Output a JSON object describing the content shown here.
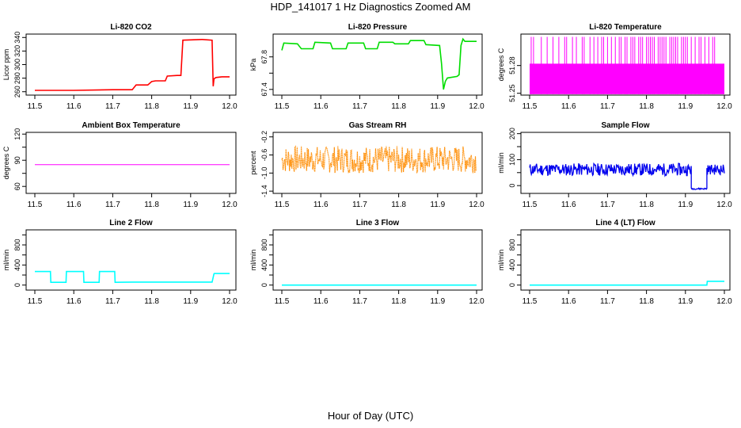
{
  "title": "HDP_141017  1 Hz Diagnostics Zoomed AM",
  "x_axis_label": "Hour of Day (UTC)",
  "chart_data": [
    {
      "type": "line",
      "title": "Li-820 CO2",
      "ylabel": "Licor ppm",
      "color": "#ff0000",
      "xlim": [
        11.5,
        12.0
      ],
      "ylim": [
        255,
        345
      ],
      "yticks": [
        260,
        280,
        300,
        320,
        340
      ],
      "xticks": [
        11.5,
        11.6,
        11.7,
        11.8,
        11.9,
        12.0
      ],
      "x": [
        11.5,
        11.6,
        11.7,
        11.75,
        11.76,
        11.79,
        11.8,
        11.81,
        11.835,
        11.84,
        11.865,
        11.875,
        11.88,
        11.93,
        11.955,
        11.958,
        11.96,
        11.965,
        11.98,
        12.0
      ],
      "y": [
        262,
        262,
        263,
        263,
        270,
        270,
        275,
        276,
        276,
        283,
        284,
        284,
        336,
        337,
        336,
        268,
        279,
        281,
        282,
        282
      ]
    },
    {
      "type": "line",
      "title": "Li-820 Pressure",
      "ylabel": "kPa",
      "color": "#00dd00",
      "xlim": [
        11.5,
        12.0
      ],
      "ylim": [
        67.33,
        68.08
      ],
      "yticks": [
        67.4,
        67.6,
        67.8
      ],
      "ytick_labels": [
        "67.4",
        "",
        "67.8"
      ],
      "xticks": [
        11.5,
        11.6,
        11.7,
        11.8,
        11.9,
        12.0
      ],
      "x": [
        11.5,
        11.505,
        11.54,
        11.55,
        11.58,
        11.585,
        11.625,
        11.63,
        11.665,
        11.67,
        11.71,
        11.715,
        11.745,
        11.75,
        11.785,
        11.79,
        11.825,
        11.83,
        11.865,
        11.87,
        11.905,
        11.91,
        11.915,
        11.92,
        11.925,
        11.95,
        11.955,
        11.96,
        11.965,
        11.97,
        12.0
      ],
      "y": [
        67.88,
        67.97,
        67.96,
        67.9,
        67.9,
        67.98,
        67.97,
        67.9,
        67.9,
        67.97,
        67.97,
        67.9,
        67.9,
        67.98,
        67.98,
        67.96,
        67.96,
        68.0,
        68.0,
        67.95,
        67.94,
        67.72,
        67.4,
        67.5,
        67.54,
        67.56,
        67.58,
        67.94,
        68.02,
        67.99,
        67.99
      ]
    },
    {
      "type": "line",
      "title": "Li-820 Temperature",
      "ylabel": "degrees C",
      "color": "#ff00ff",
      "xlim": [
        11.5,
        12.0
      ],
      "ylim": [
        51.248,
        51.314
      ],
      "yticks": [
        51.25,
        51.28
      ],
      "ytick_labels": [
        "51.25",
        "51.28"
      ],
      "top_value": 51.311,
      "low_value": 51.249,
      "high_value": 51.282,
      "xticks": [
        11.5,
        11.6,
        11.7,
        11.8,
        11.9,
        12.0
      ],
      "spikes": [
        11.504,
        11.51,
        11.53,
        11.545,
        11.56,
        11.575,
        11.59,
        11.595,
        11.61,
        11.62,
        11.635,
        11.64,
        11.655,
        11.665,
        11.675,
        11.685,
        11.69,
        11.7,
        11.71,
        11.72,
        11.73,
        11.735,
        11.745,
        11.75,
        11.76,
        11.765,
        11.77,
        11.78,
        11.785,
        11.79,
        11.8,
        11.805,
        11.81,
        11.815,
        11.82,
        11.83,
        11.835,
        11.84,
        11.845,
        11.85,
        11.86,
        11.865,
        11.87,
        11.875,
        11.88,
        11.89,
        11.895,
        11.9,
        11.905,
        11.915,
        11.925,
        11.935,
        11.94,
        11.95,
        11.96,
        11.97,
        11.975
      ]
    },
    {
      "type": "line",
      "title": "Ambient Box Temperature",
      "ylabel": "degrees C",
      "color": "#ff00ff",
      "xlim": [
        11.5,
        12.0
      ],
      "ylim": [
        52,
        122
      ],
      "yticks": [
        60,
        75,
        90,
        105,
        120
      ],
      "ytick_labels": [
        "60",
        "",
        "90",
        "",
        "120"
      ],
      "xticks": [
        11.5,
        11.6,
        11.7,
        11.8,
        11.9,
        12.0
      ],
      "x": [
        11.5,
        12.0
      ],
      "y": [
        85,
        85
      ]
    },
    {
      "type": "line",
      "title": "Gas Stream RH",
      "ylabel": "percent",
      "color": "#ff8c00",
      "xlim": [
        11.5,
        12.0
      ],
      "ylim": [
        -1.45,
        -0.1
      ],
      "yticks": [
        -1.4,
        -1.0,
        -0.6,
        -0.2
      ],
      "ytick_labels": [
        "-1.4",
        "-1.0",
        "-0.6",
        "-0.2"
      ],
      "xticks": [
        11.5,
        11.6,
        11.7,
        11.8,
        11.9,
        12.0
      ],
      "mean": -0.7,
      "noise_amplitude": 0.3,
      "spread_limits": [
        -1.36,
        -0.14
      ],
      "seed": 7
    },
    {
      "type": "line",
      "title": "Sample Flow",
      "ylabel": "ml/min",
      "color": "#0000ee",
      "xlim": [
        11.5,
        12.0
      ],
      "ylim": [
        -30,
        205
      ],
      "yticks": [
        0,
        50,
        100,
        150,
        200
      ],
      "ytick_labels": [
        "0",
        "",
        "100",
        "",
        "200"
      ],
      "xticks": [
        11.5,
        11.6,
        11.7,
        11.8,
        11.9,
        12.0
      ],
      "segments": [
        {
          "x0": 11.5,
          "x1": 11.915,
          "mean": 62,
          "noise": 24
        },
        {
          "x0": 11.915,
          "x1": 11.955,
          "mean": -12,
          "noise": 3
        },
        {
          "x0": 11.955,
          "x1": 12.0,
          "mean": 62,
          "noise": 20
        }
      ],
      "seed": 11
    },
    {
      "type": "line",
      "title": "Line 2 Flow",
      "ylabel": "ml/min",
      "color": "#00ffff",
      "xlim": [
        11.5,
        12.0
      ],
      "ylim": [
        -100,
        1100
      ],
      "yticks": [
        0,
        200,
        400,
        600,
        800,
        1000
      ],
      "ytick_labels": [
        "0",
        "",
        "400",
        "",
        "800",
        ""
      ],
      "xticks": [
        11.5,
        11.6,
        11.7,
        11.8,
        11.9,
        12.0
      ],
      "x": [
        11.5,
        11.54,
        11.541,
        11.58,
        11.581,
        11.625,
        11.626,
        11.665,
        11.666,
        11.705,
        11.706,
        11.75,
        11.955,
        11.96,
        11.961,
        12.0
      ],
      "y": [
        270,
        270,
        55,
        55,
        270,
        270,
        55,
        55,
        270,
        270,
        55,
        60,
        60,
        225,
        230,
        230
      ]
    },
    {
      "type": "line",
      "title": "Line 3 Flow",
      "ylabel": "ml/min",
      "color": "#00ffff",
      "xlim": [
        11.5,
        12.0
      ],
      "ylim": [
        -100,
        1100
      ],
      "yticks": [
        0,
        200,
        400,
        600,
        800,
        1000
      ],
      "ytick_labels": [
        "0",
        "",
        "400",
        "",
        "800",
        ""
      ],
      "xticks": [
        11.5,
        11.6,
        11.7,
        11.8,
        11.9,
        12.0
      ],
      "x": [
        11.5,
        12.0
      ],
      "y": [
        0,
        0
      ]
    },
    {
      "type": "line",
      "title": "Line 4 (LT) Flow",
      "ylabel": "ml/min",
      "color": "#00ffff",
      "xlim": [
        11.5,
        12.0
      ],
      "ylim": [
        -100,
        1100
      ],
      "yticks": [
        0,
        200,
        400,
        600,
        800,
        1000
      ],
      "ytick_labels": [
        "0",
        "",
        "400",
        "",
        "800",
        ""
      ],
      "xticks": [
        11.5,
        11.6,
        11.7,
        11.8,
        11.9,
        12.0
      ],
      "x": [
        11.5,
        11.955,
        11.956,
        12.0
      ],
      "y": [
        0,
        0,
        75,
        75
      ]
    }
  ]
}
